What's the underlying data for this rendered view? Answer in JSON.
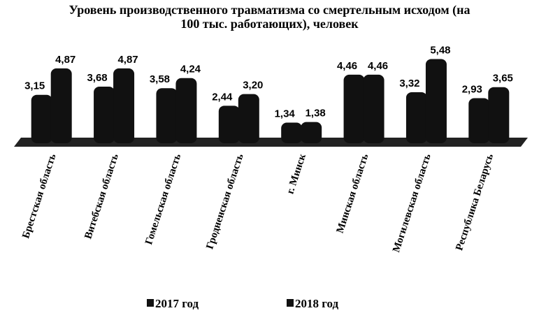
{
  "chart_data": {
    "type": "bar",
    "title": "Уровень производственного травматизма со смертельным исходом (на 100 тыс. работающих), человек",
    "categories": [
      "Брестская область",
      "Витебская область",
      "Гомельская область",
      "Гродненская область",
      "г. Минск",
      "Минская область",
      "Могилевская область",
      "Республика Беларусь"
    ],
    "series": [
      {
        "name": "2017 год",
        "color": "#111111",
        "values": [
          3.15,
          3.68,
          3.58,
          2.44,
          1.34,
          4.46,
          3.32,
          2.93
        ],
        "value_labels": [
          "3,15",
          "3,68",
          "3,58",
          "2,44",
          "1,34",
          "4,46",
          "3,32",
          "2,93"
        ]
      },
      {
        "name": "2018 год",
        "color": "#111111",
        "values": [
          4.87,
          4.87,
          4.24,
          3.2,
          1.38,
          4.46,
          5.48,
          3.65
        ],
        "value_labels": [
          "4,87",
          "4,87",
          "4,24",
          "3,20",
          "1,38",
          "4,46",
          "5,48",
          "3,65"
        ]
      }
    ]
  }
}
